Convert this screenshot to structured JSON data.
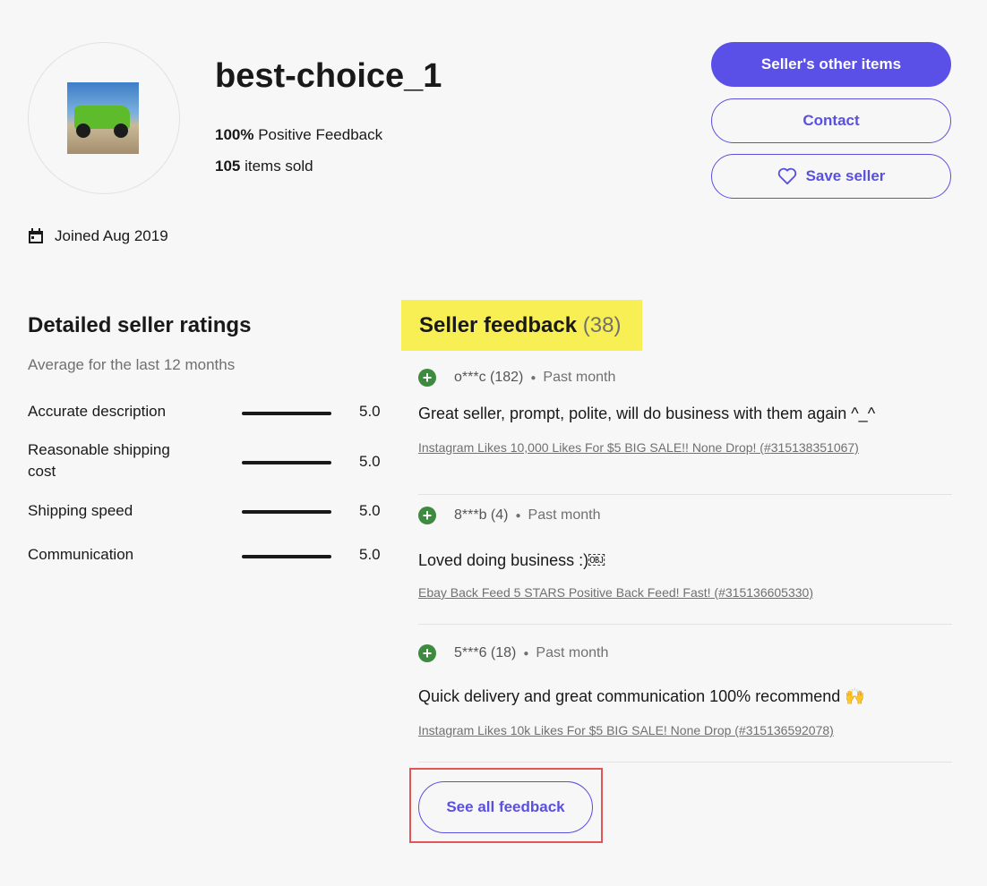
{
  "seller": {
    "name": "best-choice_1",
    "positive": "100% Positive Feedback",
    "sold": "105 items sold",
    "joined": "Joined Aug 2019"
  },
  "buttons": {
    "other_items": "Seller's other items",
    "contact": "Contact",
    "save": "Save seller"
  },
  "ratings": {
    "title": "Detailed seller ratings",
    "subtitle": "Average for the last 12 months",
    "items": [
      {
        "label": "Accurate description",
        "value": "5.0"
      },
      {
        "label": "Reasonable shipping cost",
        "value": "5.0"
      },
      {
        "label": "Shipping speed",
        "value": "5.0"
      },
      {
        "label": "Communication",
        "value": "5.0"
      }
    ]
  },
  "feedback": {
    "title": "Seller feedback",
    "count": "(38)",
    "see_all": "See all feedback",
    "items": [
      {
        "user": "o***c (182)",
        "time": "Past month",
        "text": "Great seller, prompt, polite, will do business with them again ^_^",
        "item": "Instagram Likes 10,000 Likes For $5 BIG SALE!! None Drop! (#315138351067)"
      },
      {
        "user": "8***b (4)",
        "time": "Past month",
        "text": "Loved doing business :)￼",
        "item": "Ebay Back Feed 5 STARS Positive Back Feed! Fast! (#315136605330)"
      },
      {
        "user": "5***6 (18)",
        "time": "Past month",
        "text": "Quick delivery and great communication 100% recommend 🙌",
        "item": "Instagram Likes 10k Likes For $5 BIG SALE! None Drop (#315136592078)"
      }
    ]
  },
  "colors": {
    "accent": "#5a50e8",
    "positive": "#3e8b3f",
    "highlight": "#f7ef53",
    "annotation": "#e05555"
  }
}
